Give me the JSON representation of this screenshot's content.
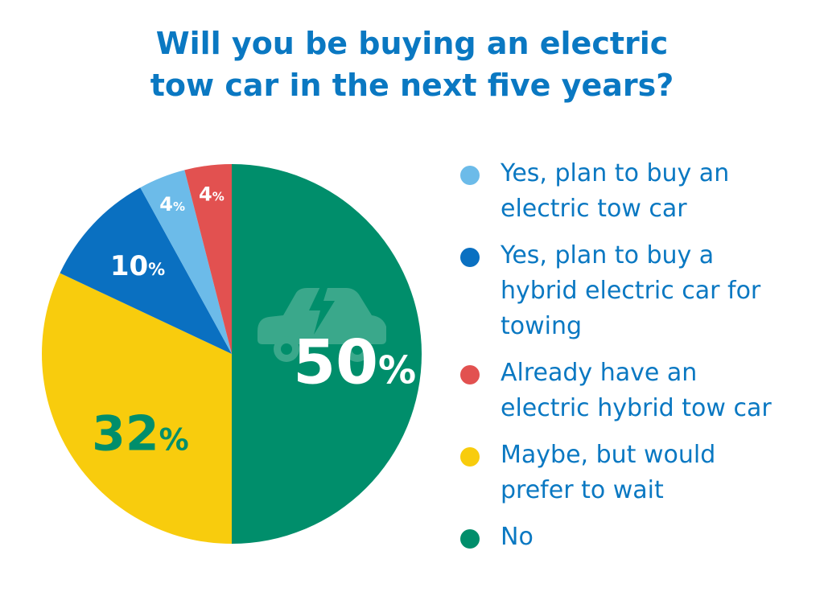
{
  "title_lines": [
    "Will you be buying an electric",
    "tow car in the next five years?"
  ],
  "chart_data": {
    "type": "pie",
    "title": "Will you be buying an electric tow car in the next five years?",
    "start_angle_deg": 0,
    "direction": "clockwise",
    "slices": [
      {
        "label": "No",
        "value": 50,
        "display": "50",
        "color": "#008e6b",
        "label_color": "#ffffff"
      },
      {
        "label": "Maybe, but would prefer to wait",
        "value": 32,
        "display": "32",
        "color": "#f8cc0d",
        "label_color": "#008e6b"
      },
      {
        "label": "Yes, plan to buy a hybrid electric car for towing",
        "value": 10,
        "display": "10",
        "color": "#0a70c1",
        "label_color": "#ffffff"
      },
      {
        "label": "Yes, plan to buy an electric tow car",
        "value": 4,
        "display": "4",
        "color": "#6cbbe9",
        "label_color": "#ffffff"
      },
      {
        "label": "Already have an electric hybrid tow car",
        "value": 4,
        "display": "4",
        "color": "#e25150",
        "label_color": "#ffffff"
      }
    ],
    "value_suffix": "%",
    "legend_position": "right",
    "icon": "electric-car-icon"
  },
  "legend": [
    {
      "lines": [
        "Yes, plan to buy an",
        "electric tow car"
      ],
      "color": "#6cbbe9"
    },
    {
      "lines": [
        "Yes, plan to buy a",
        "hybrid electric car for",
        "towing"
      ],
      "color": "#0a70c1"
    },
    {
      "lines": [
        "Already have an",
        "electric hybrid tow car"
      ],
      "color": "#e25150"
    },
    {
      "lines": [
        "Maybe, but would",
        "prefer to wait"
      ],
      "color": "#f8cc0d"
    },
    {
      "lines": [
        "No"
      ],
      "color": "#008e6b"
    }
  ]
}
